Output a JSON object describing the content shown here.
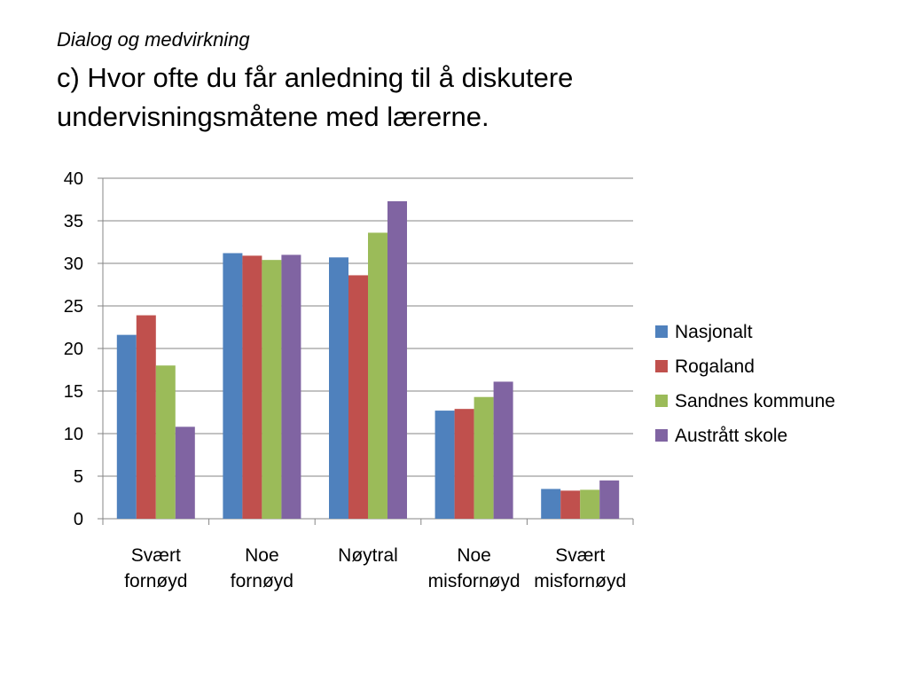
{
  "slide": {
    "subtitle": "Dialog og medvirkning",
    "title_line1": "c) Hvor ofte du får anledning til å diskutere",
    "title_line2": "undervisningsmåtene med lærerne."
  },
  "chart_data": {
    "type": "bar",
    "categories": [
      [
        "Svært",
        "fornøyd"
      ],
      [
        "Noe",
        "fornøyd"
      ],
      [
        "Nøytral"
      ],
      [
        "Noe",
        "misfornøyd"
      ],
      [
        "Svært",
        "misfornøyd"
      ]
    ],
    "series": [
      {
        "name": "Nasjonalt",
        "color": "#4f81bd",
        "values": [
          21.6,
          31.2,
          30.7,
          12.7,
          3.5
        ]
      },
      {
        "name": "Rogaland",
        "color": "#c0504d",
        "values": [
          23.9,
          30.9,
          28.6,
          12.9,
          3.3
        ]
      },
      {
        "name": "Sandnes kommune",
        "color": "#9bbb59",
        "values": [
          18.0,
          30.4,
          33.6,
          14.3,
          3.4
        ]
      },
      {
        "name": "Austrått skole",
        "color": "#8064a2",
        "values": [
          10.8,
          31.0,
          37.3,
          16.1,
          4.5
        ]
      }
    ],
    "ylim": [
      0,
      40
    ],
    "yticks": [
      0,
      5,
      10,
      15,
      20,
      25,
      30,
      35,
      40
    ],
    "grid": true,
    "legend": "right"
  }
}
